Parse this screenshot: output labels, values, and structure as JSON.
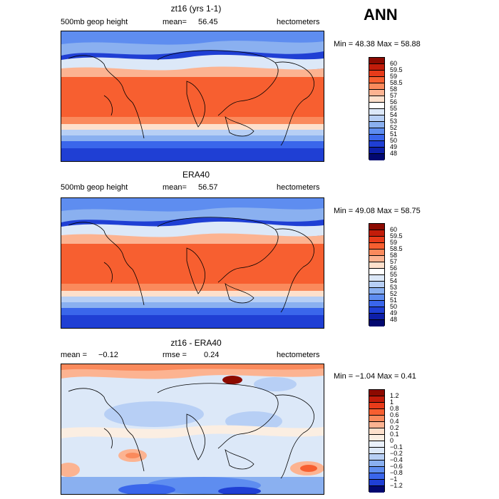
{
  "season": "ANN",
  "panels": [
    {
      "title": "zt16 (yrs 1-1)",
      "left_label": "500mb geop height",
      "mean_label": "mean=",
      "mean_value": "56.45",
      "units": "hectometers",
      "min_label": "Min =",
      "min_value": "48.38",
      "max_label": "Max =",
      "max_value": "58.88",
      "colorbar": [
        "60",
        "59.5",
        "59",
        "58.5",
        "58",
        "57",
        "56",
        "55",
        "54",
        "53",
        "52",
        "51",
        "50",
        "49",
        "48"
      ]
    },
    {
      "title": "ERA40",
      "left_label": "500mb geop height",
      "mean_label": "mean=",
      "mean_value": "56.57",
      "units": "hectometers",
      "min_label": "Min =",
      "min_value": "49.08",
      "max_label": "Max =",
      "max_value": "58.75",
      "colorbar": [
        "60",
        "59.5",
        "59",
        "58.5",
        "58",
        "57",
        "56",
        "55",
        "54",
        "53",
        "52",
        "51",
        "50",
        "49",
        "48"
      ]
    },
    {
      "title": "zt16 - ERA40",
      "left_label": "mean =",
      "left_value": "−0.12",
      "rmse_label": "rmse =",
      "rmse_value": "0.24",
      "units": "hectometers",
      "min_label": "Min =",
      "min_value": "−1.04",
      "max_label": "Max =",
      "max_value": "0.41",
      "colorbar": [
        "1.2",
        "1",
        "0.8",
        "0.6",
        "0.4",
        "0.2",
        "0.1",
        "0",
        "−0.1",
        "−0.2",
        "−0.4",
        "−0.6",
        "−0.8",
        "−1",
        "−1.2"
      ]
    }
  ],
  "colors": {
    "abs_scale": [
      "#8c0a00",
      "#c21c0a",
      "#e83b1a",
      "#f75f30",
      "#fa8a5c",
      "#fcb391",
      "#fde0cc",
      "#ffffff",
      "#dce8f8",
      "#b7cff5",
      "#8ab0f0",
      "#5e8df0",
      "#3a66eb",
      "#1f3fd4",
      "#0d1fa8",
      "#020870"
    ],
    "diff_scale": [
      "#8c0a00",
      "#c21c0a",
      "#e83b1a",
      "#f75f30",
      "#fa8a5c",
      "#fcb391",
      "#fde0cc",
      "#fbeee2",
      "#eaf1fb",
      "#dce8f8",
      "#b7cff5",
      "#8ab0f0",
      "#5e8df0",
      "#3a66eb",
      "#1f3fd4",
      "#020870"
    ]
  }
}
